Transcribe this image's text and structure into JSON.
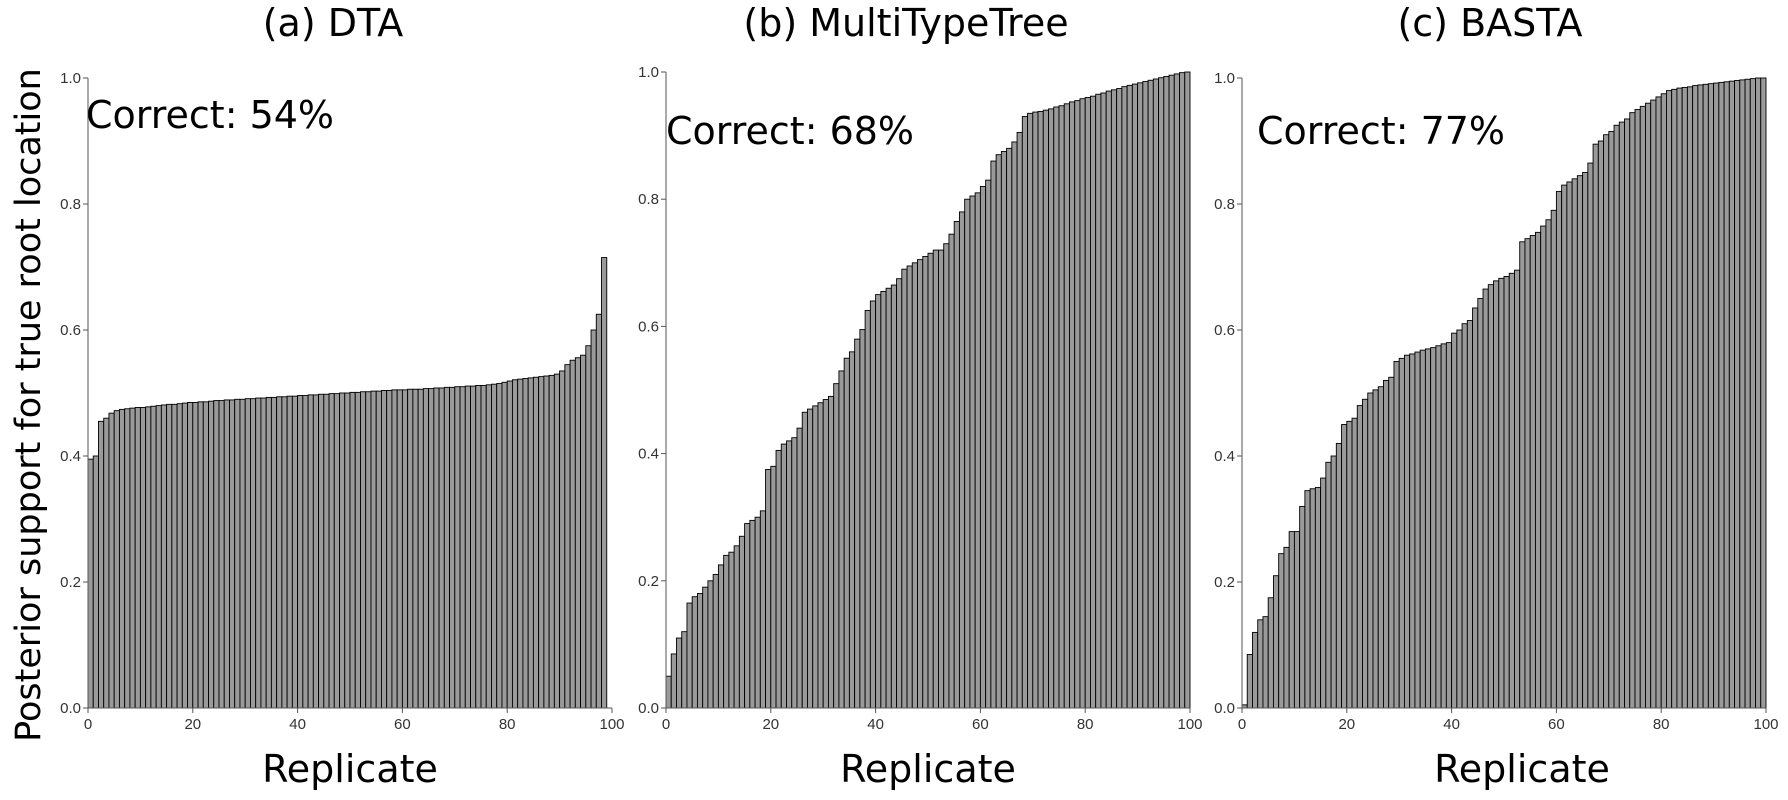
{
  "figure": {
    "ylabel": "Posterior support for true root location"
  },
  "chart_data": [
    {
      "type": "bar",
      "title": "(a) DTA",
      "annotation": "Correct: 54%",
      "xlabel": "Replicate",
      "ylabel": "Posterior support for true root location",
      "xlim": [
        0,
        100
      ],
      "ylim": [
        0,
        1
      ],
      "xticks": [
        "0",
        "20",
        "40",
        "60",
        "80",
        "100"
      ],
      "yticks": [
        "0.0",
        "0.2",
        "0.4",
        "0.6",
        "0.8",
        "1.0"
      ],
      "grid": false,
      "bar_color": "#9a9a9a",
      "values": [
        0.395,
        0.4,
        0.455,
        0.46,
        0.468,
        0.472,
        0.474,
        0.475,
        0.476,
        0.477,
        0.477,
        0.478,
        0.479,
        0.48,
        0.481,
        0.482,
        0.482,
        0.483,
        0.484,
        0.485,
        0.485,
        0.486,
        0.486,
        0.487,
        0.488,
        0.488,
        0.489,
        0.489,
        0.49,
        0.49,
        0.491,
        0.491,
        0.492,
        0.492,
        0.493,
        0.493,
        0.494,
        0.494,
        0.495,
        0.495,
        0.496,
        0.496,
        0.497,
        0.497,
        0.498,
        0.498,
        0.499,
        0.499,
        0.5,
        0.5,
        0.501,
        0.501,
        0.502,
        0.502,
        0.503,
        0.503,
        0.504,
        0.504,
        0.505,
        0.505,
        0.505,
        0.506,
        0.506,
        0.506,
        0.507,
        0.507,
        0.508,
        0.508,
        0.509,
        0.509,
        0.51,
        0.51,
        0.511,
        0.511,
        0.512,
        0.512,
        0.513,
        0.514,
        0.515,
        0.517,
        0.519,
        0.521,
        0.522,
        0.523,
        0.524,
        0.525,
        0.526,
        0.527,
        0.528,
        0.53,
        0.535,
        0.545,
        0.552,
        0.556,
        0.56,
        0.575,
        0.6,
        0.625,
        0.715
      ]
    },
    {
      "type": "bar",
      "title": "(b) MultiTypeTree",
      "annotation": "Correct: 68%",
      "xlabel": "Replicate",
      "xlim": [
        0,
        100
      ],
      "ylim": [
        0,
        1
      ],
      "xticks": [
        "0",
        "20",
        "40",
        "60",
        "80",
        "100"
      ],
      "yticks": [
        "0.0",
        "0.2",
        "0.4",
        "0.6",
        "0.8",
        "1.0"
      ],
      "grid": false,
      "bar_color": "#9a9a9a",
      "values": [
        0.05,
        0.085,
        0.11,
        0.12,
        0.165,
        0.175,
        0.18,
        0.19,
        0.2,
        0.21,
        0.225,
        0.24,
        0.245,
        0.255,
        0.27,
        0.29,
        0.295,
        0.3,
        0.31,
        0.375,
        0.38,
        0.405,
        0.415,
        0.42,
        0.425,
        0.44,
        0.465,
        0.47,
        0.475,
        0.48,
        0.485,
        0.49,
        0.51,
        0.53,
        0.55,
        0.56,
        0.58,
        0.595,
        0.625,
        0.64,
        0.65,
        0.655,
        0.66,
        0.665,
        0.675,
        0.69,
        0.695,
        0.7,
        0.705,
        0.71,
        0.715,
        0.72,
        0.72,
        0.73,
        0.745,
        0.765,
        0.78,
        0.8,
        0.805,
        0.81,
        0.82,
        0.83,
        0.86,
        0.87,
        0.875,
        0.88,
        0.89,
        0.905,
        0.93,
        0.935,
        0.937,
        0.938,
        0.94,
        0.942,
        0.945,
        0.947,
        0.95,
        0.953,
        0.955,
        0.958,
        0.96,
        0.962,
        0.965,
        0.967,
        0.97,
        0.972,
        0.974,
        0.977,
        0.979,
        0.981,
        0.983,
        0.985,
        0.987,
        0.989,
        0.991,
        0.993,
        0.995,
        0.997,
        0.999,
        1.0
      ]
    },
    {
      "type": "bar",
      "title": "(c) BASTA",
      "annotation": "Correct: 77%",
      "xlabel": "Replicate",
      "xlim": [
        0,
        100
      ],
      "ylim": [
        0,
        1
      ],
      "xticks": [
        "0",
        "20",
        "40",
        "60",
        "80",
        "100"
      ],
      "yticks": [
        "0.0",
        "0.2",
        "0.4",
        "0.6",
        "0.8",
        "1.0"
      ],
      "grid": false,
      "bar_color": "#9a9a9a",
      "values": [
        0.005,
        0.085,
        0.12,
        0.14,
        0.145,
        0.175,
        0.21,
        0.245,
        0.255,
        0.28,
        0.28,
        0.32,
        0.345,
        0.348,
        0.35,
        0.365,
        0.39,
        0.4,
        0.42,
        0.45,
        0.455,
        0.46,
        0.48,
        0.49,
        0.5,
        0.505,
        0.51,
        0.52,
        0.525,
        0.55,
        0.555,
        0.56,
        0.562,
        0.565,
        0.568,
        0.57,
        0.572,
        0.575,
        0.578,
        0.58,
        0.595,
        0.6,
        0.61,
        0.615,
        0.635,
        0.65,
        0.665,
        0.672,
        0.678,
        0.682,
        0.685,
        0.69,
        0.695,
        0.74,
        0.745,
        0.75,
        0.755,
        0.765,
        0.775,
        0.79,
        0.82,
        0.83,
        0.835,
        0.84,
        0.845,
        0.85,
        0.865,
        0.895,
        0.9,
        0.91,
        0.915,
        0.925,
        0.93,
        0.935,
        0.945,
        0.95,
        0.955,
        0.96,
        0.965,
        0.97,
        0.975,
        0.98,
        0.982,
        0.984,
        0.985,
        0.986,
        0.988,
        0.989,
        0.99,
        0.991,
        0.992,
        0.993,
        0.994,
        0.995,
        0.996,
        0.997,
        0.998,
        0.999,
        1.0,
        1.0
      ]
    }
  ]
}
